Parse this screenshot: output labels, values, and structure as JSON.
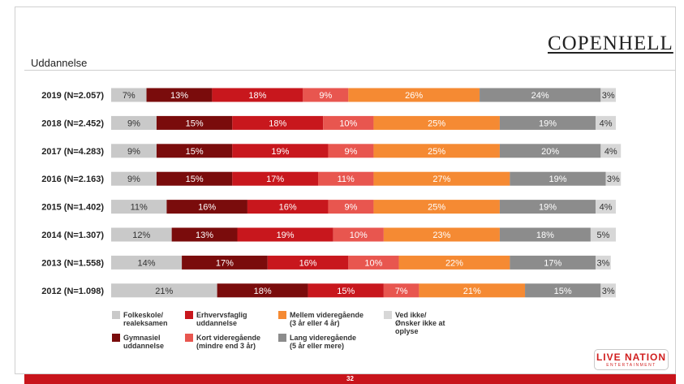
{
  "header": {
    "logo_text": "COPENHELL",
    "section_title": "Uddannelse"
  },
  "colors": {
    "folkeskole": "#c9c9c9",
    "gymnasiel": "#7a0c0c",
    "erhvervsfaglig": "#c8171d",
    "kort_videregaaende": "#e8564f",
    "mellem_videregaaende": "#f58a33",
    "lang_videregaaende": "#8c8c8c",
    "ved_ikke": "#d7d7d7"
  },
  "chart_data": {
    "type": "bar",
    "orientation": "horizontal",
    "stacked": true,
    "percent": true,
    "categories": [
      "2019 (N=2.057)",
      "2018 (N=2.452)",
      "2017 (N=4.283)",
      "2016 (N=2.163)",
      "2015 (N=1.402)",
      "2014 (N=1.307)",
      "2013 (N=1.558)",
      "2012 (N=1.098)"
    ],
    "series": [
      {
        "key": "folkeskole",
        "values": [
          7,
          9,
          9,
          9,
          11,
          12,
          14,
          21
        ]
      },
      {
        "key": "gymnasiel",
        "values": [
          13,
          15,
          15,
          15,
          16,
          13,
          17,
          18
        ]
      },
      {
        "key": "erhvervsfaglig",
        "values": [
          18,
          18,
          19,
          17,
          16,
          19,
          16,
          15
        ]
      },
      {
        "key": "kort_videregaaende",
        "values": [
          9,
          10,
          9,
          11,
          9,
          10,
          10,
          7
        ]
      },
      {
        "key": "mellem_videregaaende",
        "values": [
          26,
          25,
          25,
          27,
          25,
          23,
          22,
          21
        ]
      },
      {
        "key": "lang_videregaaende",
        "values": [
          24,
          19,
          20,
          19,
          19,
          18,
          17,
          15
        ]
      },
      {
        "key": "ved_ikke",
        "values": [
          3,
          4,
          4,
          3,
          4,
          5,
          3,
          3
        ]
      }
    ],
    "legend": {
      "placement": "bottom",
      "items": [
        {
          "key": "folkeskole",
          "label": "Folkeskole/\nrealeksamen"
        },
        {
          "key": "gymnasiel",
          "label": "Gymnasiel\nuddannelse"
        },
        {
          "key": "erhvervsfaglig",
          "label": "Erhvervsfaglig\nuddannelse"
        },
        {
          "key": "kort_videregaaende",
          "label": "Kort videregående\n(mindre end 3 år)"
        },
        {
          "key": "mellem_videregaaende",
          "label": "Mellem videregående\n(3 år eller 4 år)"
        },
        {
          "key": "lang_videregaaende",
          "label": "Lang videregående\n(5 år eller mere)"
        },
        {
          "key": "ved_ikke",
          "label": "Ved ikke/\nØnsker ikke at oplyse"
        }
      ]
    }
  },
  "brand": {
    "main": "LIVE NATION",
    "sub": "ENTERTAINMENT"
  },
  "footer": {
    "page_number": "32"
  }
}
